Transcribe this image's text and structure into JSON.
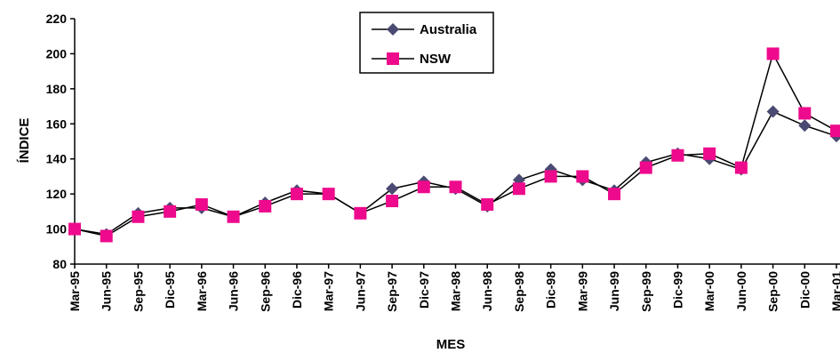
{
  "chart_data": {
    "type": "line",
    "title": "",
    "xlabel": "MES",
    "ylabel": "ÍNDICE",
    "ylim": [
      80,
      220
    ],
    "yticks": [
      80,
      100,
      120,
      140,
      160,
      180,
      200,
      220
    ],
    "grid": false,
    "legend": "top-center",
    "categories": [
      "Mar-95",
      "Jun-95",
      "Sep-95",
      "Dic-95",
      "Mar-96",
      "Jun-96",
      "Sep-96",
      "Dic-96",
      "Mar-97",
      "Jun-97",
      "Sep-97",
      "Dic-97",
      "Mar-98",
      "Jun-98",
      "Sep-98",
      "Dic-98",
      "Mar-99",
      "Jun-99",
      "Sep-99",
      "Dic-99",
      "Mar-00",
      "Jun-00",
      "Sep-00",
      "Dic-00",
      "Mar-01"
    ],
    "series": [
      {
        "name": "Australia",
        "marker": "diamond",
        "color": "#4a4a72",
        "values": [
          100,
          97,
          109,
          112,
          112,
          107,
          115,
          122,
          120,
          109,
          123,
          127,
          123,
          113,
          128,
          134,
          128,
          122,
          138,
          143,
          140,
          134,
          167,
          159,
          153
        ]
      },
      {
        "name": "NSW",
        "marker": "square",
        "color": "#ee0a8c",
        "values": [
          100,
          96,
          107,
          110,
          114,
          107,
          113,
          120,
          120,
          109,
          116,
          124,
          124,
          114,
          123,
          130,
          130,
          120,
          135,
          142,
          143,
          135,
          200,
          166,
          156
        ]
      }
    ]
  }
}
